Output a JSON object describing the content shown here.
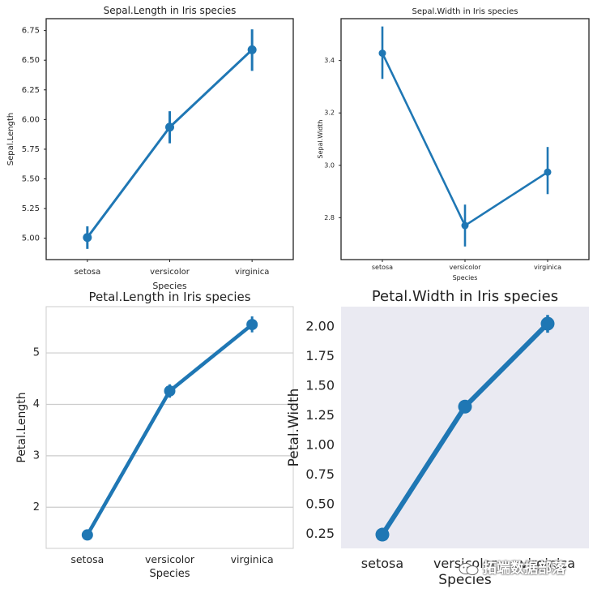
{
  "chart_data": [
    {
      "type": "line",
      "style": "point-plot with error bars",
      "title": "Sepal.Length in Iris species",
      "xlabel": "Species",
      "ylabel": "Sepal.Length",
      "categories": [
        "setosa",
        "versicolor",
        "virginica"
      ],
      "values": [
        5.006,
        5.936,
        6.588
      ],
      "ci_low": [
        4.91,
        5.8,
        6.41
      ],
      "ci_high": [
        5.1,
        6.07,
        6.76
      ],
      "ylim": [
        4.82,
        6.85
      ],
      "yticks": [
        5.0,
        5.25,
        5.5,
        5.75,
        6.0,
        6.25,
        6.5,
        6.75
      ],
      "ytick_labels": [
        "5.00",
        "5.25",
        "5.50",
        "5.75",
        "6.00",
        "6.25",
        "6.50",
        "6.75"
      ],
      "grid": false,
      "background": "#ffffff",
      "color": "#1f77b4"
    },
    {
      "type": "line",
      "style": "point-plot with error bars",
      "title": "Sepal.Width in Iris species",
      "xlabel": "Species",
      "ylabel": "Sepal.Width",
      "categories": [
        "setosa",
        "versicolor",
        "virginica"
      ],
      "values": [
        3.428,
        2.77,
        2.974
      ],
      "ci_low": [
        3.33,
        2.69,
        2.89
      ],
      "ci_high": [
        3.53,
        2.85,
        3.07
      ],
      "ylim": [
        2.64,
        3.56
      ],
      "yticks": [
        2.8,
        3.0,
        3.2,
        3.4
      ],
      "ytick_labels": [
        "2.8",
        "3.0",
        "3.2",
        "3.4"
      ],
      "grid": false,
      "background": "#ffffff",
      "color": "#1f77b4"
    },
    {
      "type": "line",
      "style": "point-plot with error bars",
      "title": "Petal.Length in Iris species",
      "xlabel": "Species",
      "ylabel": "Petal.Length",
      "categories": [
        "setosa",
        "versicolor",
        "virginica"
      ],
      "values": [
        1.462,
        4.26,
        5.552
      ],
      "ci_low": [
        1.41,
        4.13,
        5.4
      ],
      "ci_high": [
        1.51,
        4.39,
        5.71
      ],
      "ylim": [
        1.2,
        5.9
      ],
      "yticks": [
        2,
        3,
        4,
        5
      ],
      "ytick_labels": [
        "2",
        "3",
        "4",
        "5"
      ],
      "grid": true,
      "background": "#ffffff",
      "color": "#1f77b4"
    },
    {
      "type": "line",
      "style": "point-plot with error bars",
      "title": "Petal.Width in Iris species",
      "xlabel": "Species",
      "ylabel": "Petal.Width",
      "categories": [
        "setosa",
        "versicolor",
        "virginica"
      ],
      "values": [
        0.246,
        1.326,
        2.026
      ],
      "ci_low": [
        0.22,
        1.27,
        1.95
      ],
      "ci_high": [
        0.28,
        1.38,
        2.1
      ],
      "ylim": [
        0.13,
        2.17
      ],
      "yticks": [
        0.25,
        0.5,
        0.75,
        1.0,
        1.25,
        1.5,
        1.75,
        2.0
      ],
      "ytick_labels": [
        "0.25",
        "0.50",
        "0.75",
        "1.00",
        "1.25",
        "1.50",
        "1.75",
        "2.00"
      ],
      "grid": false,
      "background": "#eaeaf2",
      "color": "#1f77b4"
    }
  ],
  "watermark": {
    "text": "拓端数据部落",
    "icon": "wechat-icon"
  }
}
